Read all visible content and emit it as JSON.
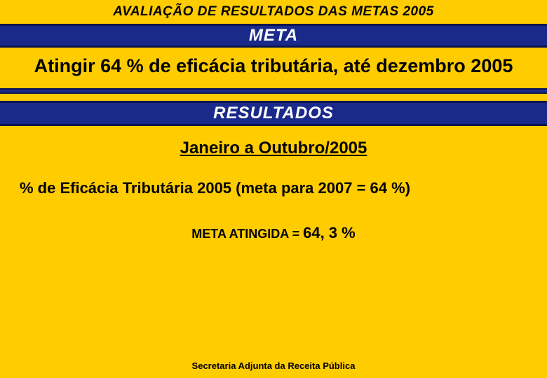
{
  "header": {
    "title": "AVALIAÇÃO DE  RESULTADOS DAS METAS 2005"
  },
  "bands": {
    "meta_label": "META",
    "resultados_label": "RESULTADOS"
  },
  "goal": {
    "text": "Atingir 64 % de  eficácia tributária, até dezembro 2005"
  },
  "period": {
    "text": "Janeiro a Outubro/2005"
  },
  "efficacy": {
    "line": "% de Eficácia Tributária  2005 (meta para 2007 = 64 %)"
  },
  "result": {
    "label": "META  ATINGIDA  = ",
    "value": "64, 3 %"
  },
  "footer": {
    "text": "Secretaria Adjunta da Receita Pública"
  },
  "styles": {
    "background_color": "#ffcc00",
    "band_color": "#1a2a8a",
    "band_border_color": "#0a1550",
    "text_color": "#000000",
    "band_text_color": "#ffffff",
    "header_fontsize": 19,
    "band_fontsize": 24,
    "goal_fontsize": 27,
    "period_fontsize": 24,
    "efficacy_fontsize": 22,
    "result_label_fontsize": 18,
    "result_value_fontsize": 22,
    "footer_fontsize": 13
  }
}
